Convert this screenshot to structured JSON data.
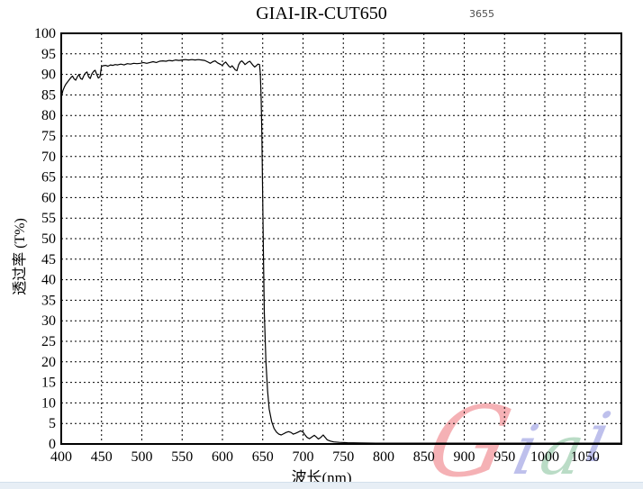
{
  "header": {
    "title": "GIAI-IR-CUT650",
    "code": "3655"
  },
  "chart_data": {
    "type": "line",
    "title": "GIAI-IR-CUT650",
    "annotation": "3655",
    "xlabel": "波长(nm)",
    "ylabel": "透过率 (T%)",
    "xlim": [
      400,
      1095
    ],
    "ylim": [
      0,
      100
    ],
    "xticks": [
      400,
      450,
      500,
      550,
      600,
      650,
      700,
      750,
      800,
      850,
      900,
      950,
      1000,
      1050
    ],
    "yticks": [
      0,
      5,
      10,
      15,
      20,
      25,
      30,
      35,
      40,
      45,
      50,
      55,
      60,
      65,
      70,
      75,
      80,
      85,
      90,
      95,
      100
    ],
    "grid": "dashed",
    "line_color": "#000000",
    "series": [
      {
        "name": "transmission",
        "x": [
          400,
          402,
          404,
          406,
          408,
          410,
          412,
          414,
          416,
          418,
          420,
          422,
          424,
          426,
          428,
          430,
          432,
          434,
          436,
          438,
          440,
          442,
          444,
          446,
          448,
          450,
          452,
          455,
          458,
          461,
          464,
          467,
          470,
          474,
          478,
          482,
          486,
          490,
          494,
          498,
          502,
          506,
          510,
          514,
          518,
          522,
          526,
          530,
          534,
          538,
          542,
          546,
          550,
          554,
          558,
          562,
          566,
          570,
          574,
          578,
          582,
          585,
          588,
          591,
          594,
          597,
          600,
          602,
          604,
          606,
          608,
          610,
          612,
          614,
          616,
          618,
          620,
          622,
          624,
          626,
          628,
          630,
          632,
          634,
          636,
          638,
          640,
          642,
          644,
          646,
          647,
          648,
          649,
          650,
          651,
          652,
          654,
          656,
          658,
          661,
          664,
          667,
          670,
          673,
          676,
          679,
          682,
          685,
          688,
          691,
          694,
          697,
          700,
          702,
          705,
          708,
          711,
          714,
          716,
          719,
          722,
          725,
          727,
          730,
          734,
          738,
          745,
          755,
          770,
          790,
          820,
          860,
          900,
          950,
          1000,
          1050,
          1094
        ],
        "y": [
          84.3,
          86.0,
          87.0,
          87.7,
          88.2,
          88.7,
          89.2,
          89.6,
          88.9,
          88.6,
          89.4,
          90.0,
          89.0,
          88.8,
          89.7,
          90.3,
          90.6,
          89.4,
          89.0,
          90.1,
          90.7,
          91.0,
          90.0,
          89.1,
          89.4,
          91.9,
          92.1,
          92.2,
          92.0,
          92.3,
          92.2,
          92.4,
          92.3,
          92.5,
          92.3,
          92.6,
          92.5,
          92.7,
          92.6,
          92.7,
          92.9,
          92.7,
          92.9,
          93.1,
          92.9,
          93.2,
          93.3,
          93.2,
          93.4,
          93.3,
          93.5,
          93.4,
          93.5,
          93.6,
          93.5,
          93.6,
          93.5,
          93.6,
          93.5,
          93.4,
          93.0,
          92.7,
          93.1,
          93.3,
          92.8,
          92.5,
          92.2,
          92.7,
          93.0,
          92.5,
          92.0,
          91.7,
          92.1,
          91.6,
          91.1,
          90.9,
          92.3,
          93.0,
          93.3,
          92.9,
          92.4,
          92.7,
          93.0,
          93.2,
          92.7,
          92.2,
          91.8,
          92.1,
          92.5,
          92.4,
          90.0,
          84.0,
          75.0,
          60.0,
          45.0,
          32.0,
          20.0,
          13.0,
          8.5,
          5.5,
          3.8,
          2.9,
          2.4,
          2.2,
          2.5,
          2.8,
          3.0,
          2.8,
          2.4,
          2.6,
          2.9,
          3.2,
          2.9,
          2.3,
          1.6,
          1.3,
          1.7,
          2.1,
          1.8,
          1.2,
          1.6,
          2.2,
          1.7,
          1.0,
          0.7,
          0.5,
          0.4,
          0.3,
          0.25,
          0.2,
          0.2,
          0.2,
          0.2,
          0.2,
          0.2,
          0.2,
          0.2
        ]
      }
    ]
  },
  "watermark": {
    "text": "Giai",
    "letters": [
      {
        "char": "G",
        "color": "#f5a9ad"
      },
      {
        "char": "i",
        "color": "#b7baea"
      },
      {
        "char": "a",
        "color": "#b3d9c0"
      },
      {
        "char": "i",
        "color": "#b7baea"
      }
    ]
  }
}
